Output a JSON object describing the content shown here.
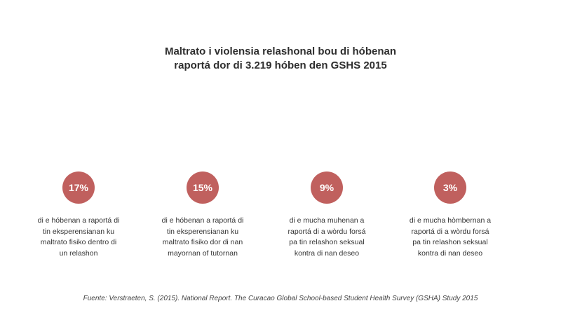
{
  "chart_data": {
    "type": "table",
    "title_lines": [
      "Maltrato i violensia relashonal bou di hóbenan",
      "raportá dor di 3.219 hóben den GSHS 2015"
    ],
    "stats": [
      {
        "value": "17%",
        "description_lines": [
          "di e hóbenan a raportá di",
          "tin eksperensianan ku",
          "maltrato fisiko dentro di",
          "un relashon"
        ]
      },
      {
        "value": "15%",
        "description_lines": [
          "di e hóbenan a raportá di",
          "tin eksperensianan ku",
          "maltrato fisiko dor di nan",
          "mayornan of tutornan"
        ]
      },
      {
        "value": "9%",
        "description_lines": [
          "di e mucha muhenan a",
          "raportá di a wòrdu forsá",
          "pa tin relashon seksual",
          "kontra di nan deseo"
        ]
      },
      {
        "value": "3%",
        "description_lines": [
          "di e mucha hòmbernan a",
          "raportá di a wòrdu forsá",
          "pa tin relashon seksual",
          "kontra di nan deseo"
        ]
      }
    ],
    "source": "Fuente: Verstraeten, S. (2015). National Report. The Curacao Global School-based Student Health Survey (GSHA) Study 2015"
  },
  "colors": {
    "circle": "#c0605e",
    "title": "#2e2e2e"
  }
}
